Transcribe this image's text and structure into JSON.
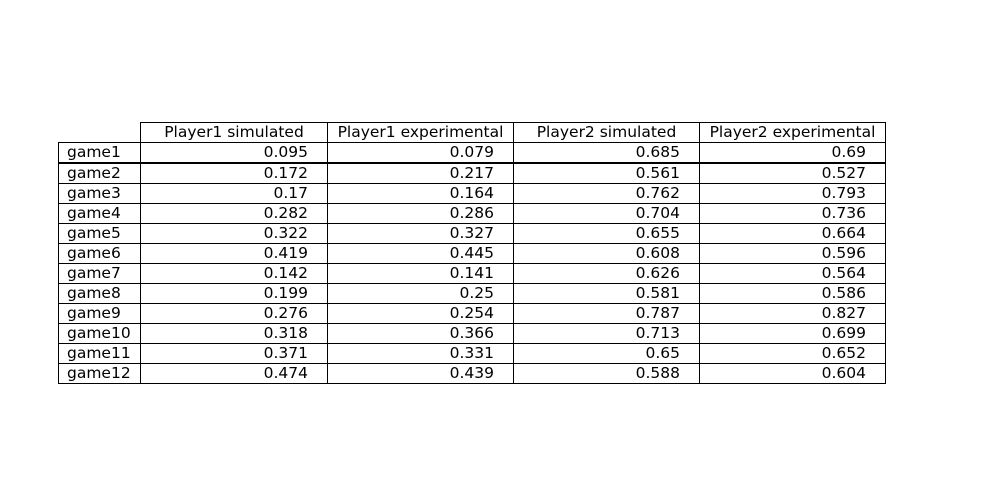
{
  "chart_data": {
    "type": "table",
    "columns": [
      "Player1 simulated",
      "Player1 experimental",
      "Player2 simulated",
      "Player2 experimental"
    ],
    "rows": [
      {
        "label": "game1",
        "values": [
          "0.095",
          "0.079",
          "0.685",
          "0.69"
        ]
      },
      {
        "label": "game2",
        "values": [
          "0.172",
          "0.217",
          "0.561",
          "0.527"
        ]
      },
      {
        "label": "game3",
        "values": [
          "0.17",
          "0.164",
          "0.762",
          "0.793"
        ]
      },
      {
        "label": "game4",
        "values": [
          "0.282",
          "0.286",
          "0.704",
          "0.736"
        ]
      },
      {
        "label": "game5",
        "values": [
          "0.322",
          "0.327",
          "0.655",
          "0.664"
        ]
      },
      {
        "label": "game6",
        "values": [
          "0.419",
          "0.445",
          "0.608",
          "0.596"
        ]
      },
      {
        "label": "game7",
        "values": [
          "0.142",
          "0.141",
          "0.626",
          "0.564"
        ]
      },
      {
        "label": "game8",
        "values": [
          "0.199",
          "0.25",
          "0.581",
          "0.586"
        ]
      },
      {
        "label": "game9",
        "values": [
          "0.276",
          "0.254",
          "0.787",
          "0.827"
        ]
      },
      {
        "label": "game10",
        "values": [
          "0.318",
          "0.366",
          "0.713",
          "0.699"
        ]
      },
      {
        "label": "game11",
        "values": [
          "0.371",
          "0.331",
          "0.65",
          "0.652"
        ]
      },
      {
        "label": "game12",
        "values": [
          "0.474",
          "0.439",
          "0.588",
          "0.604"
        ]
      }
    ]
  }
}
